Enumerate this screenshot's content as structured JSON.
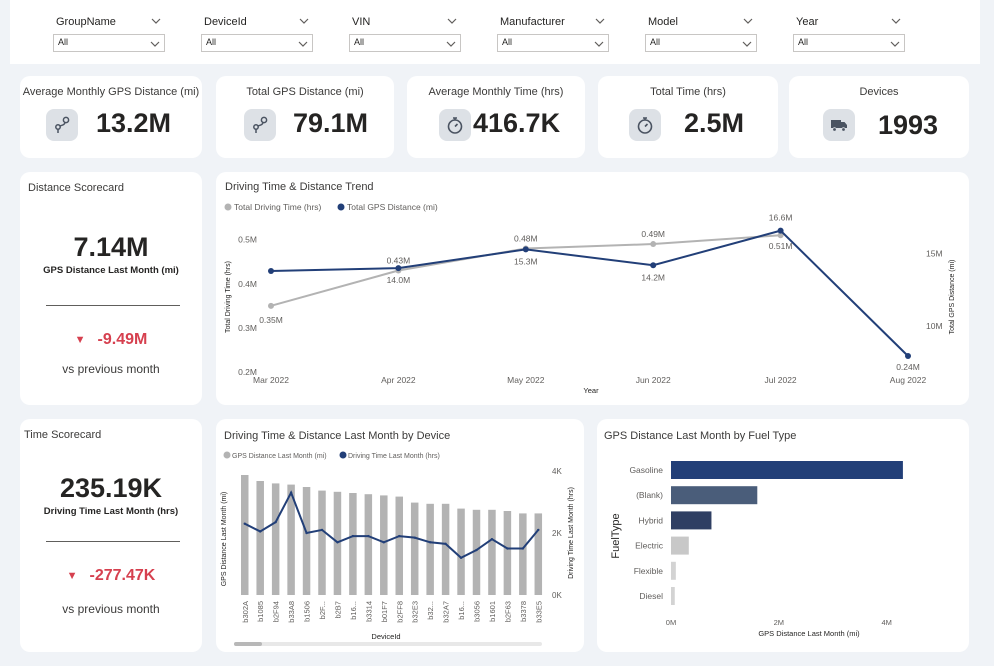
{
  "filters": [
    {
      "label": "GroupName",
      "value": "All"
    },
    {
      "label": "DeviceId",
      "value": "All"
    },
    {
      "label": "VIN",
      "value": "All"
    },
    {
      "label": "Manufacturer",
      "value": "All"
    },
    {
      "label": "Model",
      "value": "All"
    },
    {
      "label": "Year",
      "value": "All"
    }
  ],
  "kpis": [
    {
      "title": "Average Monthly GPS Distance (mi)",
      "value": "13.2M",
      "icon": "route-icon"
    },
    {
      "title": "Total GPS Distance (mi)",
      "value": "79.1M",
      "icon": "route-icon"
    },
    {
      "title": "Average Monthly Time (hrs)",
      "value": "416.7K",
      "icon": "stopwatch-icon"
    },
    {
      "title": "Total Time (hrs)",
      "value": "2.5M",
      "icon": "stopwatch-icon"
    },
    {
      "title": "Devices",
      "value": "1993",
      "icon": "truck-icon"
    }
  ],
  "distance_scorecard": {
    "title": "Distance Scorecard",
    "value": "7.14M",
    "subtitle": "GPS Distance Last Month (mi)",
    "delta": "-9.49M",
    "comparison": "vs previous month"
  },
  "time_scorecard": {
    "title": "Time Scorecard",
    "value": "235.19K",
    "subtitle": "Driving Time Last Month (hrs)",
    "delta": "-277.47K",
    "comparison": "vs previous month"
  },
  "colors": {
    "grey_series": "#b3b3b3",
    "navy_series": "#223f78",
    "delta_negative": "#d6404f"
  },
  "chart_data": [
    {
      "type": "line",
      "title": "Driving Time & Distance Trend",
      "x": [
        "Mar 2022",
        "Apr 2022",
        "May 2022",
        "Jun 2022",
        "Jul 2022",
        "Aug 2022"
      ],
      "xlabel": "Year",
      "ylabel_left": "Total Driving Time (hrs)",
      "ylabel_right": "Total GPS Distance (mi)",
      "yticks_left": [
        "0.5M",
        "0.4M",
        "0.3M",
        "0.2M"
      ],
      "yticks_right": [
        "15M",
        "10M"
      ],
      "ylim_left": [
        0.2,
        0.54
      ],
      "ylim_right": [
        6.8,
        17.2
      ],
      "legend_position": "top-left",
      "series": [
        {
          "name": "Total Driving Time (hrs)",
          "axis": "left",
          "values": [
            0.35,
            0.43,
            0.48,
            0.49,
            0.51,
            null
          ],
          "labels": [
            "0.35M",
            "0.43M",
            "0.48M",
            "0.49M",
            "0.51M",
            ""
          ]
        },
        {
          "name": "Total GPS Distance (mi)",
          "axis": "right",
          "values": [
            13.8,
            14.0,
            15.3,
            14.2,
            16.6,
            0.24
          ],
          "labels": [
            "",
            "14.0M",
            "15.3M",
            "14.2M",
            "16.6M",
            "0.24M"
          ]
        }
      ]
    },
    {
      "type": "bar",
      "title": "Driving Time & Distance Last Month by Device",
      "categories": [
        "b302A",
        "b1085",
        "b2F94",
        "b33A8",
        "b1506",
        "b2F...",
        "b2B7",
        "b16...",
        "b3314",
        "b01F7",
        "b2FF8",
        "b32E3",
        "b32...",
        "b32A7",
        "b16...",
        "b3056",
        "b1601",
        "b2F63",
        "b3378",
        "b33E5"
      ],
      "xlabel": "DeviceId",
      "ylabel_left": "GPS Distance Last Month (mi)",
      "ylabel_right": "Driving Time Last Month (hrs)",
      "yticks_right": [
        "4K",
        "2K",
        "0K"
      ],
      "ylim_right": [
        0,
        4
      ],
      "legend_position": "top-left",
      "series": [
        {
          "name": "GPS Distance Last Month (mi)",
          "axis": "left",
          "values": [
            100,
            95,
            93,
            92,
            90,
            87,
            86,
            85,
            84,
            83,
            82,
            77,
            76,
            76,
            72,
            71,
            71,
            70,
            68,
            68
          ]
        },
        {
          "name": "Driving Time Last Month (hrs)",
          "axis": "right",
          "values": [
            2.3,
            2.05,
            2.35,
            3.3,
            2.0,
            2.1,
            1.7,
            1.9,
            1.9,
            1.7,
            1.9,
            1.85,
            1.7,
            1.65,
            1.2,
            1.45,
            1.8,
            1.5,
            1.5,
            2.1
          ]
        }
      ]
    },
    {
      "type": "bar",
      "orientation": "horizontal",
      "title": "GPS Distance Last Month by Fuel Type",
      "categories": [
        "Gasoline",
        "(Blank)",
        "Hybrid",
        "Electric",
        "Flexible",
        "Diesel"
      ],
      "values": [
        4.3,
        1.6,
        0.75,
        0.33,
        0.09,
        0.07
      ],
      "xlabel": "GPS Distance Last Month (mi)",
      "ylabel": "FuelType",
      "xticks": [
        "0M",
        "2M",
        "4M"
      ],
      "xlim": [
        0,
        4.45
      ],
      "colors": [
        "#223f78",
        "#4a5d7a",
        "#2f3f63",
        "#c8c8c8",
        "#d3d3d3",
        "#d3d3d3"
      ]
    }
  ]
}
